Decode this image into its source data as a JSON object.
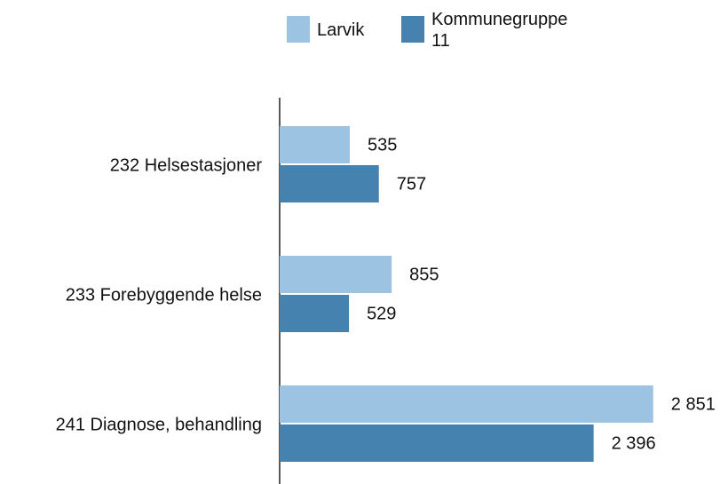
{
  "chart_data": {
    "type": "barh",
    "categories": [
      "232 Helsestasjoner",
      "233 Forebyggende helse",
      "241 Diagnose, behandling"
    ],
    "series": [
      {
        "name": "Larvik",
        "color": "#9dc3e3",
        "values": [
          535,
          855,
          2851
        ],
        "value_labels": [
          "535",
          "855",
          "2 851"
        ]
      },
      {
        "name": "Kommunegruppe 11",
        "color": "#4682b0",
        "values": [
          757,
          529,
          2396
        ],
        "value_labels": [
          "757",
          "529",
          "2 396"
        ]
      }
    ],
    "xlim": [
      0,
      2900
    ]
  }
}
